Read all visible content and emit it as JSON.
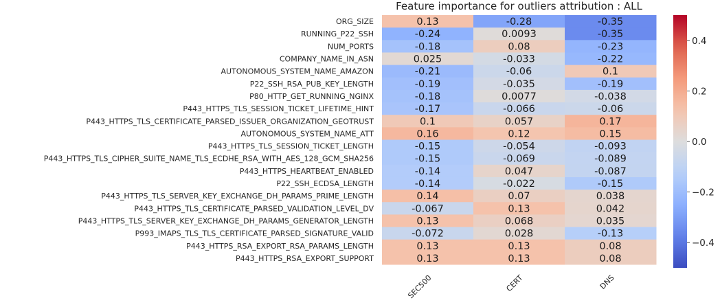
{
  "chart_data": {
    "type": "heatmap",
    "title": "Feature importance for outliers attribution : ALL",
    "columns": [
      "SEC500",
      "CERT",
      "DNS"
    ],
    "rows": [
      "ORG_SIZE",
      "RUNNING_P22_SSH",
      "NUM_PORTS",
      "COMPANY_NAME_IN_ASN",
      "AUTONOMOUS_SYSTEM_NAME_AMAZON",
      "P22_SSH_RSA_PUB_KEY_LENGTH",
      "P80_HTTP_GET_RUNNING_NGINX",
      "P443_HTTPS_TLS_SESSION_TICKET_LIFETIME_HINT",
      "P443_HTTPS_TLS_CERTIFICATE_PARSED_ISSUER_ORGANIZATION_GEOTRUST",
      "AUTONOMOUS_SYSTEM_NAME_ATT",
      "P443_HTTPS_TLS_SESSION_TICKET_LENGTH",
      "P443_HTTPS_TLS_CIPHER_SUITE_NAME_TLS_ECDHE_RSA_WITH_AES_128_GCM_SHA256",
      "P443_HTTPS_HEARTBEAT_ENABLED",
      "P22_SSH_ECDSA_LENGTH",
      "P443_HTTPS_TLS_SERVER_KEY_EXCHANGE_DH_PARAMS_PRIME_LENGTH",
      "P443_HTTPS_TLS_CERTIFICATE_PARSED_VALIDATION_LEVEL_DV",
      "P443_HTTPS_TLS_SERVER_KEY_EXCHANGE_DH_PARAMS_GENERATOR_LENGTH",
      "P993_IMAPS_TLS_TLS_CERTIFICATE_PARSED_SIGNATURE_VALID",
      "P443_HTTPS_RSA_EXPORT_RSA_PARAMS_LENGTH",
      "P443_HTTPS_RSA_EXPORT_SUPPORT"
    ],
    "values": [
      [
        0.13,
        -0.28,
        -0.35
      ],
      [
        -0.24,
        0.0093,
        -0.35
      ],
      [
        -0.18,
        0.08,
        -0.23
      ],
      [
        0.025,
        -0.033,
        -0.22
      ],
      [
        -0.21,
        -0.06,
        0.1
      ],
      [
        -0.19,
        -0.035,
        -0.19
      ],
      [
        -0.18,
        0.0077,
        -0.038
      ],
      [
        -0.17,
        -0.066,
        -0.06
      ],
      [
        0.1,
        0.057,
        0.17
      ],
      [
        0.16,
        0.12,
        0.15
      ],
      [
        -0.15,
        -0.054,
        -0.093
      ],
      [
        -0.15,
        -0.069,
        -0.089
      ],
      [
        -0.14,
        0.047,
        -0.087
      ],
      [
        -0.14,
        -0.022,
        -0.15
      ],
      [
        0.14,
        0.07,
        0.038
      ],
      [
        -0.067,
        0.13,
        0.042
      ],
      [
        0.13,
        0.068,
        0.035
      ],
      [
        -0.072,
        0.028,
        -0.13
      ],
      [
        0.13,
        0.13,
        0.08
      ],
      [
        0.13,
        0.13,
        0.08
      ]
    ],
    "cell_labels": [
      [
        "0.13",
        "-0.28",
        "-0.35"
      ],
      [
        "-0.24",
        "0.0093",
        "-0.35"
      ],
      [
        "-0.18",
        "0.08",
        "-0.23"
      ],
      [
        "0.025",
        "-0.033",
        "-0.22"
      ],
      [
        "-0.21",
        "-0.06",
        "0.1"
      ],
      [
        "-0.19",
        "-0.035",
        "-0.19"
      ],
      [
        "-0.18",
        "0.0077",
        "-0.038"
      ],
      [
        "-0.17",
        "-0.066",
        "-0.06"
      ],
      [
        "0.1",
        "0.057",
        "0.17"
      ],
      [
        "0.16",
        "0.12",
        "0.15"
      ],
      [
        "-0.15",
        "-0.054",
        "-0.093"
      ],
      [
        "-0.15",
        "-0.069",
        "-0.089"
      ],
      [
        "-0.14",
        "0.047",
        "-0.087"
      ],
      [
        "-0.14",
        "-0.022",
        "-0.15"
      ],
      [
        "0.14",
        "0.07",
        "0.038"
      ],
      [
        "-0.067",
        "0.13",
        "0.042"
      ],
      [
        "0.13",
        "0.068",
        "0.035"
      ],
      [
        "-0.072",
        "0.028",
        "-0.13"
      ],
      [
        "0.13",
        "0.13",
        "0.08"
      ],
      [
        "0.13",
        "0.13",
        "0.08"
      ]
    ],
    "colormap": "coolwarm",
    "vmin": -0.5,
    "vmax": 0.5,
    "colorbar_ticks": [
      0.4,
      0.2,
      0.0,
      -0.2,
      -0.4
    ],
    "colorbar_tick_labels": [
      "0.4",
      "0.2",
      "0.0",
      "−0.2",
      "−0.4"
    ],
    "grid": false,
    "legend": "colorbar-right"
  }
}
